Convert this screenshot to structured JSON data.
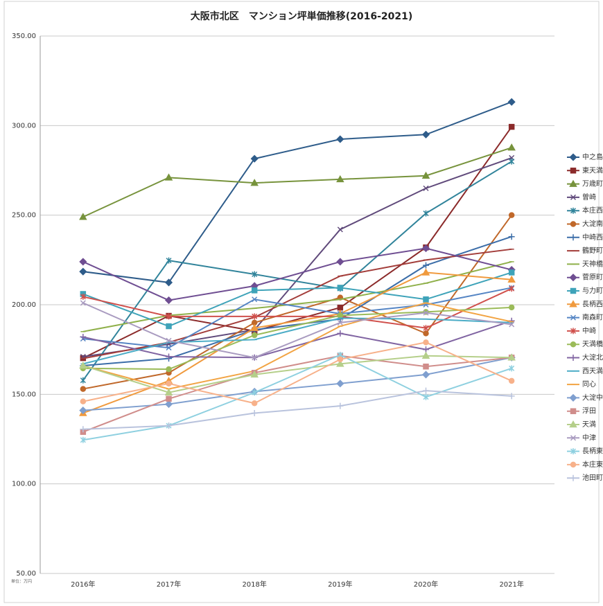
{
  "chart_data": {
    "type": "line",
    "title": "大阪市北区　マンション坪単価推移(2016-2021)",
    "unit_note": "単位：万円",
    "categories": [
      "2016年",
      "2017年",
      "2018年",
      "2019年",
      "2020年",
      "2021年"
    ],
    "ylim": [
      50,
      350
    ],
    "yticks": [
      {
        "value": 50,
        "label": "50.00"
      },
      {
        "value": 100,
        "label": "100.00"
      },
      {
        "value": 150,
        "label": "150.00"
      },
      {
        "value": 200,
        "label": "200.00"
      },
      {
        "value": 250,
        "label": "250.00"
      },
      {
        "value": 300,
        "label": "300.00"
      },
      {
        "value": 350,
        "label": "350.00"
      }
    ],
    "grid": true,
    "legend": "right",
    "series": [
      {
        "name": "中之島",
        "color": "#2e5c8a",
        "marker": "diamond",
        "values": [
          218.5,
          212.4,
          281.5,
          292.4,
          295,
          313.2
        ]
      },
      {
        "name": "東天満",
        "color": "#8b2a2a",
        "marker": "square",
        "values": [
          170.2,
          193.8,
          185.3,
          198.4,
          232,
          299.3
        ]
      },
      {
        "name": "万歳町",
        "color": "#77933c",
        "marker": "triangle",
        "values": [
          249,
          271,
          268,
          270,
          272,
          287.7
        ]
      },
      {
        "name": "曽崎",
        "color": "#604a7b",
        "marker": "x",
        "values": [
          171,
          178,
          186,
          242,
          265,
          282
        ]
      },
      {
        "name": "本庄西",
        "color": "#31849b",
        "marker": "star",
        "values": [
          157.8,
          224.7,
          217,
          209,
          251,
          280
        ]
      },
      {
        "name": "大淀南",
        "color": "#c0682a",
        "marker": "circle",
        "values": [
          153,
          162,
          190,
          204,
          184,
          250
        ]
      },
      {
        "name": "中崎西",
        "color": "#3b6da8",
        "marker": "plus",
        "values": [
          166,
          170,
          186,
          192,
          222,
          238
        ]
      },
      {
        "name": "鶴野町",
        "color": "#a33d3a",
        "marker": "dash",
        "values": [
          170,
          179,
          193,
          216,
          225,
          231
        ]
      },
      {
        "name": "天神橋",
        "color": "#8fb04a",
        "marker": "dash",
        "values": [
          185,
          194,
          198,
          203,
          212,
          224
        ]
      },
      {
        "name": "菅原町",
        "color": "#6f4e92",
        "marker": "diamond",
        "values": [
          224,
          202.5,
          210.5,
          224,
          231.5,
          219.5
        ]
      },
      {
        "name": "与力町",
        "color": "#3ea3b9",
        "marker": "square",
        "values": [
          206,
          188,
          208,
          209.5,
          203,
          218
        ]
      },
      {
        "name": "長柄西",
        "color": "#f09a3e",
        "marker": "triangle",
        "values": [
          139.5,
          157.5,
          187,
          195,
          218,
          214
        ]
      },
      {
        "name": "南森町",
        "color": "#5585c4",
        "marker": "x",
        "values": [
          181,
          176,
          203,
          195,
          200,
          209.5
        ]
      },
      {
        "name": "中崎",
        "color": "#d0504c",
        "marker": "star",
        "values": [
          204.5,
          193.5,
          193.5,
          193.5,
          187,
          209
        ]
      },
      {
        "name": "天満橋",
        "color": "#9bbb59",
        "marker": "circle",
        "values": [
          164.5,
          164,
          183,
          194,
          196,
          198.5
        ]
      },
      {
        "name": "大淀北",
        "color": "#8064a2",
        "marker": "plus",
        "values": [
          182,
          171,
          170.5,
          184,
          175,
          191
        ]
      },
      {
        "name": "西天満",
        "color": "#4bacc6",
        "marker": "dash",
        "values": [
          167,
          179,
          180.5,
          192.5,
          192,
          190
        ]
      },
      {
        "name": "同心",
        "color": "#f2a443",
        "marker": "dash",
        "values": [
          166,
          153,
          163,
          188,
          201,
          190.5
        ]
      },
      {
        "name": "大淀中",
        "color": "#7f9fcf",
        "marker": "diamond",
        "values": [
          141,
          144.5,
          151.5,
          156,
          161,
          170.5
        ]
      },
      {
        "name": "浮田",
        "color": "#d08d8b",
        "marker": "square",
        "values": [
          129,
          147.5,
          162,
          171.5,
          165.5,
          170.5
        ]
      },
      {
        "name": "天満",
        "color": "#b5cf8a",
        "marker": "triangle",
        "values": [
          166,
          151,
          161,
          167,
          171.5,
          170.5
        ]
      },
      {
        "name": "中津",
        "color": "#a99bc0",
        "marker": "x",
        "values": [
          201,
          180,
          170.5,
          190,
          195.5,
          189
        ]
      },
      {
        "name": "長柄東",
        "color": "#8ed0e0",
        "marker": "star",
        "values": [
          124.5,
          132.5,
          151,
          172,
          148.5,
          164.5
        ]
      },
      {
        "name": "本庄東",
        "color": "#f7b18a",
        "marker": "circle",
        "values": [
          146,
          156,
          145,
          169.5,
          179,
          157.5
        ]
      },
      {
        "name": "池田町",
        "color": "#b9c3dd",
        "marker": "plus",
        "values": [
          130.5,
          132.5,
          139.5,
          143.5,
          152,
          149
        ]
      }
    ]
  }
}
